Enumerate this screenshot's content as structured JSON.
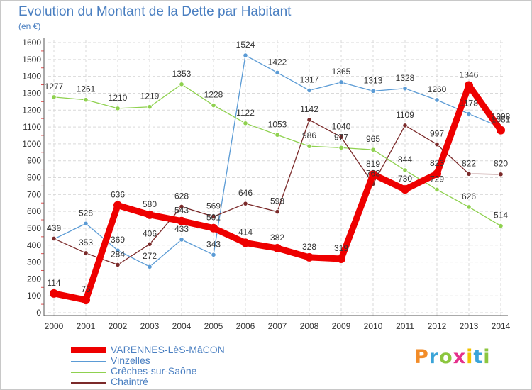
{
  "header": {
    "title": "Evolution du Montant de la Dette par Habitant",
    "subtitle": "(en €)"
  },
  "logo": {
    "text": "Proxiti",
    "letters": [
      {
        "ch": "P",
        "color": "#f28c28"
      },
      {
        "ch": "r",
        "color": "#3aa4d8"
      },
      {
        "ch": "o",
        "color": "#8cc63f"
      },
      {
        "ch": "x",
        "color": "#e5308c"
      },
      {
        "ch": "i",
        "color": "#f2c200"
      },
      {
        "ch": "t",
        "color": "#3aa4d8"
      },
      {
        "ch": "i",
        "color": "#8cc63f"
      }
    ]
  },
  "chart_data": {
    "type": "line",
    "title": "Evolution du Montant de la Dette par Habitant",
    "subtitle": "(en €)",
    "xlabel": "",
    "ylabel": "",
    "x": [
      "2000",
      "2001",
      "2002",
      "2003",
      "2004",
      "2005",
      "2006",
      "2007",
      "2008",
      "2009",
      "2010",
      "2011",
      "2012",
      "2013",
      "2014"
    ],
    "ylim": [
      0,
      1600
    ],
    "yticks": [
      0,
      100,
      200,
      300,
      400,
      500,
      600,
      700,
      800,
      900,
      1000,
      1100,
      1200,
      1300,
      1400,
      1500,
      1600
    ],
    "grid": true,
    "legend_position": "bottom-left",
    "series": [
      {
        "name": "Vinzelles",
        "color": "#5b9bd5",
        "values": [
          436,
          528,
          369,
          272,
          433,
          343,
          1524,
          1422,
          1317,
          1365,
          1313,
          1328,
          1260,
          1178,
          1098
        ],
        "labels": [
          "436",
          "528",
          "369",
          "272",
          "433",
          "343",
          "1524",
          "1422",
          "1317",
          "1365",
          "1313",
          "1328",
          "1260",
          "1178",
          "1098"
        ]
      },
      {
        "name": "Crêches-sur-Saône",
        "color": "#8fd14f",
        "values": [
          1277,
          1261,
          1210,
          1219,
          1353,
          1228,
          1122,
          1053,
          986,
          977,
          965,
          844,
          729,
          626,
          514
        ],
        "labels": [
          "1277",
          "1261",
          "1210",
          "1219",
          "1353",
          "1228",
          "1122",
          "1053",
          "986",
          "977",
          "965",
          "844",
          "729",
          "626",
          "514"
        ]
      },
      {
        "name": "Chaintré",
        "color": "#7b2a2a",
        "values": [
          439,
          353,
          284,
          406,
          628,
          569,
          646,
          598,
          1142,
          1040,
          763,
          1109,
          997,
          822,
          820
        ],
        "labels": [
          "439",
          "353",
          "284",
          "406",
          "628",
          "569",
          "646",
          "598",
          "1142",
          "1040",
          "763",
          "1109",
          "997",
          "822",
          "820"
        ]
      },
      {
        "name": "VARENNES-LèS-MâCON",
        "color": "#ee0000",
        "values": [
          114,
          75,
          636,
          580,
          543,
          501,
          414,
          382,
          328,
          319,
          819,
          730,
          823,
          1346,
          1081
        ],
        "labels": [
          "114",
          "75",
          "636",
          "580",
          "543",
          "501",
          "414",
          "382",
          "328",
          "319",
          "819",
          "730",
          "823",
          "1346",
          "1081"
        ]
      }
    ]
  },
  "legend": {
    "items": [
      {
        "label": "VARENNES-LèS-MâCON",
        "color": "#ee0000",
        "thick": true
      },
      {
        "label": "Vinzelles",
        "color": "#5b9bd5",
        "thick": false
      },
      {
        "label": "Crêches-sur-Saône",
        "color": "#8fd14f",
        "thick": false
      },
      {
        "label": "Chaintré",
        "color": "#7b2a2a",
        "thick": false
      }
    ]
  }
}
